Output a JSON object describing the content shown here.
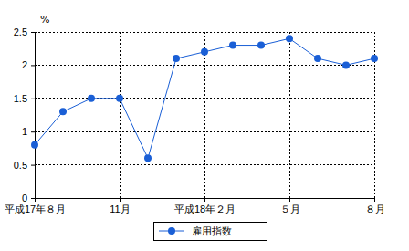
{
  "chart_data": {
    "type": "line",
    "y_label": "%",
    "categories": [
      "平成17年８月",
      null,
      null,
      "11月",
      null,
      null,
      "平成18年２月",
      null,
      null,
      "５月",
      null,
      null,
      "８月"
    ],
    "series": [
      {
        "name": "雇用指数",
        "color": "#1a5fd6",
        "marker": "circle",
        "line_style": "solid",
        "values": [
          0.8,
          1.3,
          1.5,
          1.5,
          0.6,
          2.1,
          2.2,
          2.3,
          2.3,
          2.4,
          2.1,
          2.0,
          2.1
        ]
      }
    ],
    "ylim": [
      0,
      2.5
    ],
    "yticks": [
      0,
      0.5,
      1,
      1.5,
      2,
      2.5
    ],
    "grid": true,
    "legend": "bottom"
  }
}
